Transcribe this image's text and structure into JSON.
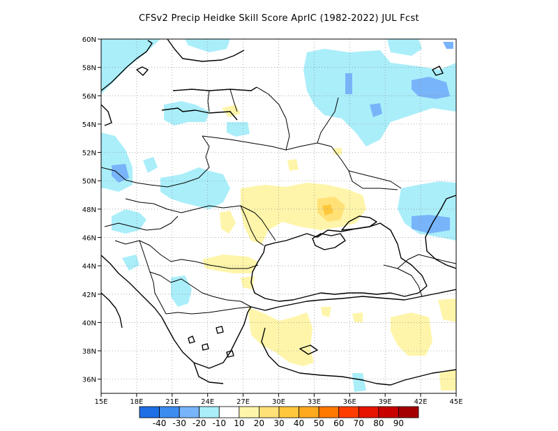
{
  "title": "CFSv2 Precip Heidke Skill Score AprIC (1982-2022) JUL Fcst",
  "map": {
    "lon_range": [
      15,
      45
    ],
    "lat_range": [
      35,
      60
    ],
    "x_ticks": [
      "15E",
      "18E",
      "21E",
      "24E",
      "27E",
      "30E",
      "33E",
      "36E",
      "39E",
      "42E",
      "45E"
    ],
    "y_ticks": [
      "36N",
      "38N",
      "40N",
      "42N",
      "44N",
      "46N",
      "48N",
      "50N",
      "52N",
      "54N",
      "56N",
      "58N",
      "60N"
    ],
    "gridlines": "dotted"
  },
  "colorbar": {
    "colors": [
      "#1e6ee6",
      "#3c8cf0",
      "#78b4fa",
      "#aaeefa",
      "#ffffff",
      "#fff5aa",
      "#ffe178",
      "#ffc83c",
      "#ffaa1e",
      "#ff7800",
      "#ff3c00",
      "#e61400",
      "#c80000",
      "#a50000"
    ],
    "labels": [
      "-40",
      "-30",
      "-20",
      "-10",
      "10",
      "20",
      "30",
      "40",
      "50",
      "60",
      "70",
      "80",
      "90"
    ]
  }
}
